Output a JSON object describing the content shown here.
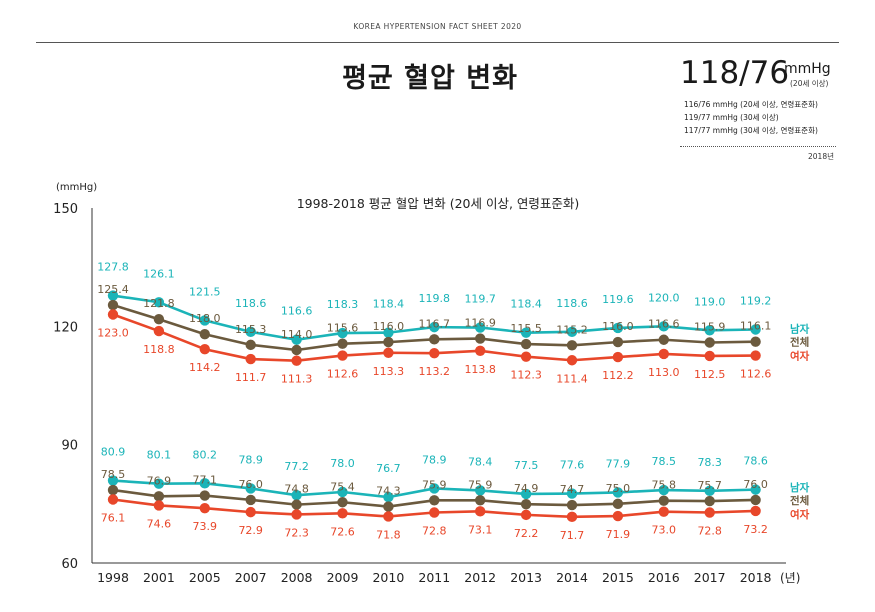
{
  "header": {
    "top_label": "KOREA HYPERTENSION FACT SHEET 2020",
    "title": "평균 혈압 변화"
  },
  "summary": {
    "main_value": "118/76",
    "unit": "mmHg",
    "unit_note": "(20세 이상)",
    "lines": [
      "116/76 mmHg (20세 이상, 연령표준화)",
      "119/77 mmHg (30세 이상)",
      "117/77 mmHg (30세 이상, 연령표준화)"
    ],
    "year": "2018년"
  },
  "chart_data": {
    "type": "line",
    "title": "1998-2018 평균 혈압 변화 (20세 이상, 연령표준화)",
    "ylabel": "(mmHg)",
    "xlabel": "(년)",
    "ylim": [
      60,
      150
    ],
    "yticks": [
      60,
      90,
      120,
      150
    ],
    "categories": [
      "1998",
      "2001",
      "2005",
      "2007",
      "2008",
      "2009",
      "2010",
      "2011",
      "2012",
      "2013",
      "2014",
      "2015",
      "2016",
      "2017",
      "2018"
    ],
    "grid": false,
    "legend": "right",
    "series": [
      {
        "group": "systolic",
        "name": "남자",
        "color": "#1bb4b8",
        "labelPos": "above",
        "values": [
          127.8,
          126.1,
          121.5,
          118.6,
          116.6,
          118.3,
          118.4,
          119.8,
          119.7,
          118.4,
          118.6,
          119.6,
          120.0,
          119.0,
          119.2
        ]
      },
      {
        "group": "systolic",
        "name": "전체",
        "color": "#6b5a3e",
        "labelPos": "above2",
        "values": [
          125.4,
          121.8,
          118.0,
          115.3,
          114.0,
          115.6,
          116.0,
          116.7,
          116.9,
          115.5,
          115.2,
          116.0,
          116.6,
          115.9,
          116.1
        ]
      },
      {
        "group": "systolic",
        "name": "여자",
        "color": "#e8472a",
        "labelPos": "below",
        "values": [
          123.0,
          118.8,
          114.2,
          111.7,
          111.3,
          112.6,
          113.3,
          113.2,
          113.8,
          112.3,
          111.4,
          112.2,
          113.0,
          112.5,
          112.6
        ]
      },
      {
        "group": "diastolic",
        "name": "남자",
        "color": "#1bb4b8",
        "labelPos": "above",
        "values": [
          80.9,
          80.1,
          80.2,
          78.9,
          77.2,
          78.0,
          76.7,
          78.9,
          78.4,
          77.5,
          77.6,
          77.9,
          78.5,
          78.3,
          78.6
        ]
      },
      {
        "group": "diastolic",
        "name": "전체",
        "color": "#6b5a3e",
        "labelPos": "above2",
        "values": [
          78.5,
          76.9,
          77.1,
          76.0,
          74.8,
          75.4,
          74.3,
          75.9,
          75.9,
          74.9,
          74.7,
          75.0,
          75.8,
          75.7,
          76.0
        ]
      },
      {
        "group": "diastolic",
        "name": "여자",
        "color": "#e8472a",
        "labelPos": "below",
        "values": [
          76.1,
          74.6,
          73.9,
          72.9,
          72.3,
          72.6,
          71.8,
          72.8,
          73.1,
          72.2,
          71.7,
          71.9,
          73.0,
          72.8,
          73.2
        ]
      }
    ]
  }
}
